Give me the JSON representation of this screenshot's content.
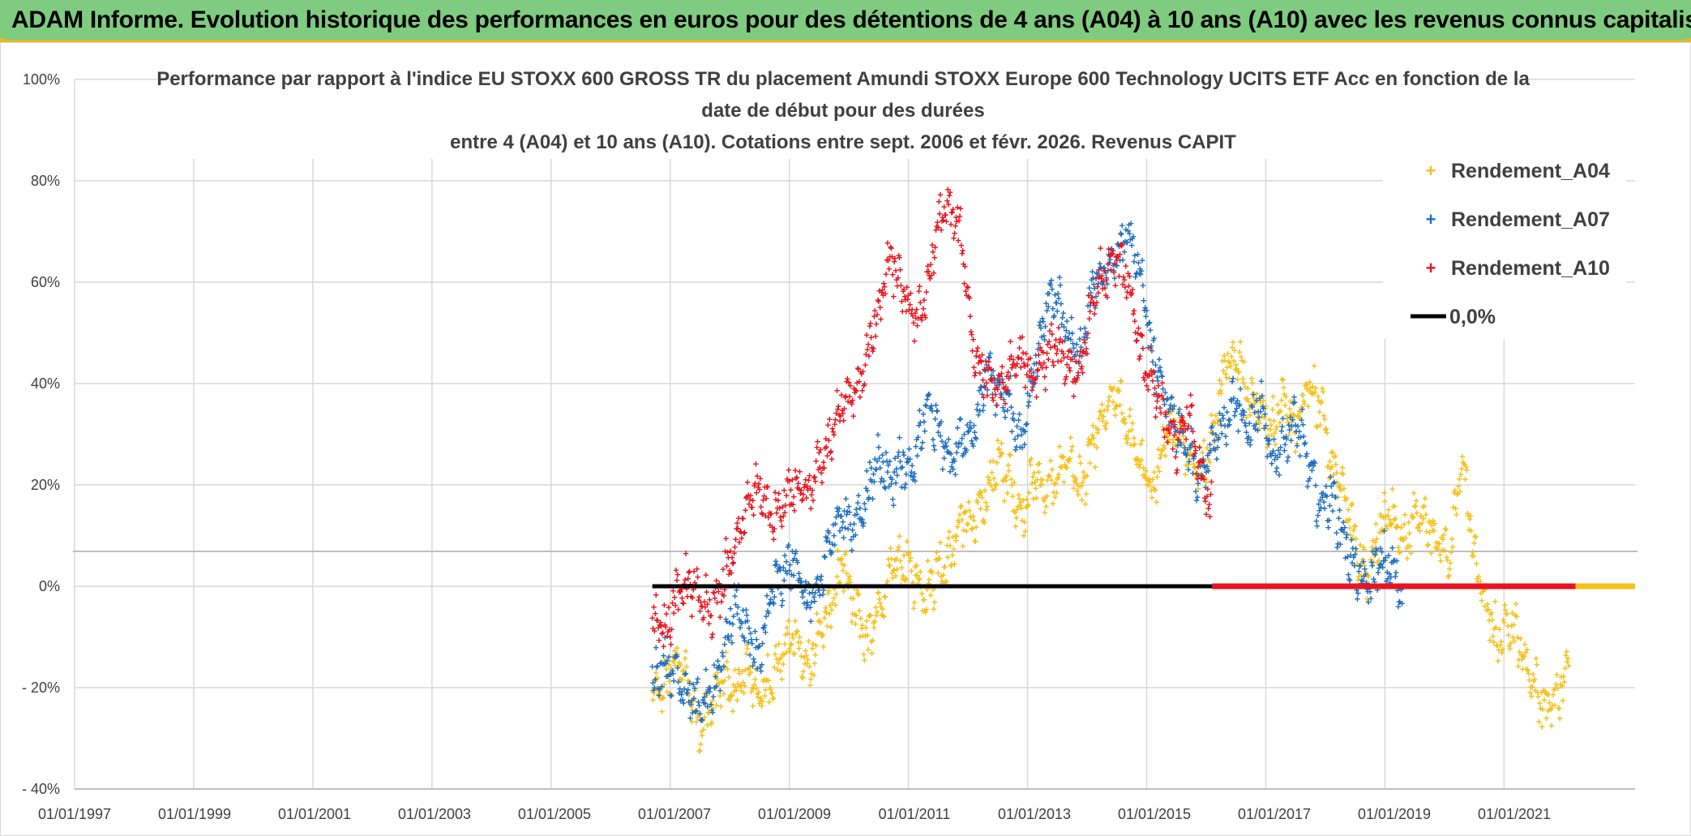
{
  "header": {
    "banner_text": "ADAM Informe. Evolution historique des performances en euros pour des détentions de 4 ans (A04) à 10 ans (A10) avec les revenus connus capitalisés"
  },
  "colors": {
    "banner_bg": "#7fcb7f",
    "a04": "#f5c018",
    "a07": "#1f6fbf",
    "a10": "#e8141e",
    "zero": "#000000",
    "grid": "#d9d9d9"
  },
  "chart_data": {
    "type": "scatter",
    "title_lines": [
      "Performance par rapport à l'indice EU STOXX 600 GROSS TR  du placement Amundi STOXX Europe 600 Technology UCITS ETF Acc en fonction de la",
      "date de début pour des durées",
      "entre 4 (A04) et 10 ans (A10). Cotations entre sept. 2006 et févr. 2026. Revenus CAPIT"
    ],
    "x_tick_labels": [
      "01/01/1997",
      "01/01/1999",
      "01/01/2001",
      "01/01/2003",
      "01/01/2005",
      "01/01/2007",
      "01/01/2009",
      "01/01/2011",
      "01/01/2013",
      "01/01/2015",
      "01/01/2017",
      "01/01/2019",
      "01/01/2021"
    ],
    "x_range_years": [
      1997.0,
      2023.2
    ],
    "y_tick_labels": [
      "100%",
      "80%",
      "60%",
      "40%",
      "20%",
      "0%",
      "- 20%",
      "- 40%"
    ],
    "y_range_pct": [
      -40,
      100
    ],
    "y_ticks_pct": [
      100,
      80,
      60,
      40,
      20,
      0,
      -20,
      -40
    ],
    "legend": [
      "Rendement_A04",
      "Rendement_A07",
      "Rendement_A10",
      "0,0%"
    ],
    "series": [
      {
        "name": "Rendement_A04",
        "points": [
          [
            2006.7,
            -22
          ],
          [
            2006.9,
            -20
          ],
          [
            2007.1,
            -14
          ],
          [
            2007.3,
            -19
          ],
          [
            2007.5,
            -28
          ],
          [
            2007.7,
            -23
          ],
          [
            2007.9,
            -18
          ],
          [
            2008.1,
            -21
          ],
          [
            2008.3,
            -16
          ],
          [
            2008.5,
            -22
          ],
          [
            2008.7,
            -18
          ],
          [
            2008.9,
            -13
          ],
          [
            2009.1,
            -9
          ],
          [
            2009.3,
            -17
          ],
          [
            2009.5,
            -10
          ],
          [
            2009.7,
            -4
          ],
          [
            2009.9,
            5
          ],
          [
            2010.1,
            -3
          ],
          [
            2010.3,
            -11
          ],
          [
            2010.5,
            -5
          ],
          [
            2010.7,
            3
          ],
          [
            2010.9,
            5
          ],
          [
            2011.1,
            2
          ],
          [
            2011.3,
            -1
          ],
          [
            2011.5,
            4
          ],
          [
            2011.7,
            6
          ],
          [
            2011.9,
            14
          ],
          [
            2012.1,
            12
          ],
          [
            2012.3,
            18
          ],
          [
            2012.5,
            25
          ],
          [
            2012.7,
            21
          ],
          [
            2012.9,
            14
          ],
          [
            2013.1,
            22
          ],
          [
            2013.3,
            19
          ],
          [
            2013.5,
            21
          ],
          [
            2013.7,
            26
          ],
          [
            2013.9,
            19
          ],
          [
            2014.1,
            28
          ],
          [
            2014.3,
            34
          ],
          [
            2014.5,
            38
          ],
          [
            2014.7,
            31
          ],
          [
            2014.9,
            24
          ],
          [
            2015.1,
            19
          ],
          [
            2015.3,
            28
          ],
          [
            2015.5,
            33
          ],
          [
            2015.7,
            26
          ],
          [
            2015.9,
            23
          ],
          [
            2016.1,
            29
          ],
          [
            2016.3,
            43
          ],
          [
            2016.5,
            47
          ],
          [
            2016.7,
            38
          ],
          [
            2016.9,
            35
          ],
          [
            2017.1,
            31
          ],
          [
            2017.3,
            37
          ],
          [
            2017.5,
            31
          ],
          [
            2017.7,
            41
          ],
          [
            2017.9,
            36
          ],
          [
            2018.1,
            24
          ],
          [
            2018.3,
            19
          ],
          [
            2018.5,
            9
          ],
          [
            2018.7,
            1
          ],
          [
            2018.9,
            11
          ],
          [
            2019.1,
            15
          ],
          [
            2019.3,
            8
          ],
          [
            2019.5,
            14
          ],
          [
            2019.7,
            13
          ],
          [
            2019.9,
            9
          ],
          [
            2020.1,
            6
          ],
          [
            2020.3,
            26
          ],
          [
            2020.5,
            6
          ],
          [
            2020.7,
            -4
          ],
          [
            2020.9,
            -11
          ],
          [
            2021.1,
            -6
          ],
          [
            2021.3,
            -13
          ],
          [
            2021.5,
            -19
          ],
          [
            2021.7,
            -24
          ],
          [
            2021.9,
            -22
          ],
          [
            2022.1,
            -15
          ]
        ]
      },
      {
        "name": "Rendement_A07",
        "points": [
          [
            2006.7,
            -18
          ],
          [
            2006.9,
            -15
          ],
          [
            2007.1,
            -17
          ],
          [
            2007.3,
            -21
          ],
          [
            2007.5,
            -24
          ],
          [
            2007.7,
            -22
          ],
          [
            2007.9,
            -12
          ],
          [
            2008.1,
            -3
          ],
          [
            2008.3,
            -9
          ],
          [
            2008.5,
            -15
          ],
          [
            2008.7,
            -1
          ],
          [
            2008.9,
            2
          ],
          [
            2009.1,
            6
          ],
          [
            2009.3,
            -4
          ],
          [
            2009.5,
            -1
          ],
          [
            2009.7,
            11
          ],
          [
            2009.9,
            14
          ],
          [
            2010.1,
            12
          ],
          [
            2010.3,
            18
          ],
          [
            2010.5,
            26
          ],
          [
            2010.7,
            21
          ],
          [
            2010.9,
            25
          ],
          [
            2011.1,
            23
          ],
          [
            2011.3,
            36
          ],
          [
            2011.5,
            31
          ],
          [
            2011.7,
            25
          ],
          [
            2011.9,
            29
          ],
          [
            2012.1,
            31
          ],
          [
            2012.3,
            42
          ],
          [
            2012.5,
            39
          ],
          [
            2012.7,
            36
          ],
          [
            2012.9,
            28
          ],
          [
            2013.1,
            42
          ],
          [
            2013.3,
            55
          ],
          [
            2013.5,
            59
          ],
          [
            2013.7,
            48
          ],
          [
            2013.9,
            45
          ],
          [
            2014.1,
            60
          ],
          [
            2014.3,
            62
          ],
          [
            2014.5,
            65
          ],
          [
            2014.7,
            70
          ],
          [
            2014.9,
            62
          ],
          [
            2015.1,
            46
          ],
          [
            2015.3,
            38
          ],
          [
            2015.5,
            32
          ],
          [
            2015.7,
            27
          ],
          [
            2015.9,
            20
          ],
          [
            2016.1,
            28
          ],
          [
            2016.3,
            33
          ],
          [
            2016.5,
            38
          ],
          [
            2016.7,
            30
          ],
          [
            2016.9,
            36
          ],
          [
            2017.1,
            25
          ],
          [
            2017.3,
            29
          ],
          [
            2017.5,
            33
          ],
          [
            2017.7,
            25
          ],
          [
            2017.9,
            16
          ],
          [
            2018.1,
            18
          ],
          [
            2018.3,
            10
          ],
          [
            2018.5,
            3
          ],
          [
            2018.7,
            0
          ],
          [
            2018.9,
            5
          ],
          [
            2019.1,
            4
          ],
          [
            2019.3,
            -1
          ]
        ]
      },
      {
        "name": "Rendement_A10",
        "points": [
          [
            2006.7,
            -6
          ],
          [
            2006.9,
            -9
          ],
          [
            2007.1,
            -2
          ],
          [
            2007.3,
            1
          ],
          [
            2007.5,
            -3
          ],
          [
            2007.7,
            -5
          ],
          [
            2007.9,
            2
          ],
          [
            2008.1,
            8
          ],
          [
            2008.3,
            16
          ],
          [
            2008.5,
            20
          ],
          [
            2008.7,
            13
          ],
          [
            2008.9,
            16
          ],
          [
            2009.1,
            20
          ],
          [
            2009.3,
            17
          ],
          [
            2009.5,
            24
          ],
          [
            2009.7,
            29
          ],
          [
            2009.9,
            38
          ],
          [
            2010.1,
            37
          ],
          [
            2010.3,
            45
          ],
          [
            2010.5,
            55
          ],
          [
            2010.7,
            65
          ],
          [
            2010.9,
            58
          ],
          [
            2011.1,
            53
          ],
          [
            2011.3,
            57
          ],
          [
            2011.5,
            72
          ],
          [
            2011.7,
            75
          ],
          [
            2011.9,
            68
          ],
          [
            2012.1,
            46
          ],
          [
            2012.3,
            42
          ],
          [
            2012.5,
            38
          ],
          [
            2012.7,
            42
          ],
          [
            2012.9,
            46
          ],
          [
            2013.1,
            40
          ],
          [
            2013.3,
            45
          ],
          [
            2013.5,
            48
          ],
          [
            2013.7,
            42
          ],
          [
            2013.9,
            43
          ],
          [
            2014.1,
            58
          ],
          [
            2014.3,
            62
          ],
          [
            2014.5,
            66
          ],
          [
            2014.7,
            60
          ],
          [
            2014.9,
            45
          ],
          [
            2015.1,
            40
          ],
          [
            2015.3,
            34
          ],
          [
            2015.5,
            28
          ],
          [
            2015.7,
            35
          ],
          [
            2015.9,
            22
          ],
          [
            2016.1,
            14
          ]
        ]
      },
      {
        "name": "0,0%",
        "points": [
          [
            2006.7,
            0
          ],
          [
            2023.2,
            0
          ]
        ]
      }
    ]
  }
}
